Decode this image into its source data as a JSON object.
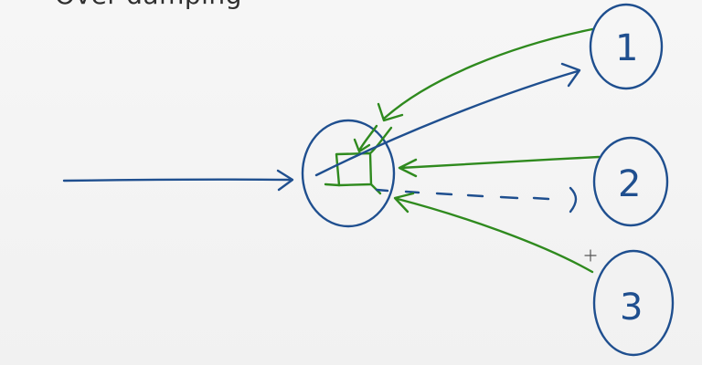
{
  "title": "Over-damping",
  "nodes": [
    {
      "label": "1"
    },
    {
      "label": "2"
    },
    {
      "label": "3"
    }
  ],
  "colors": {
    "background": "#f3f3f3",
    "blue_ink": "#1f4f8f",
    "green_ink": "#2f8a1e",
    "text": "#2f2f2f"
  },
  "icons": {
    "cursor": "crosshair-cursor-icon"
  }
}
